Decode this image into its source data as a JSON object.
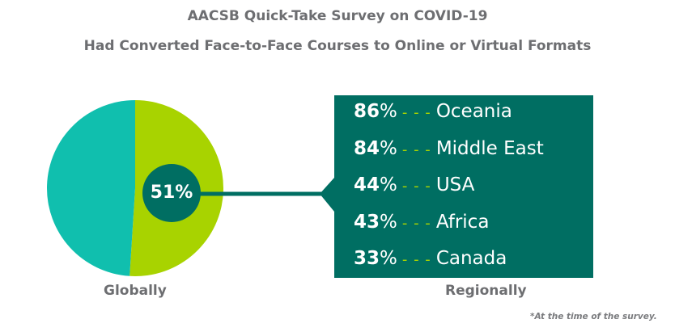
{
  "chart_data": {
    "type": "pie",
    "title": "AACSB Quick-Take Survey on COVID-19",
    "subtitle": "Had Converted Face-to-Face Courses to Online or Virtual Formats",
    "global": {
      "label": "Globally",
      "value": 51,
      "value_label": "51%"
    },
    "slices": [
      {
        "value": 51,
        "color": "#a8d300"
      },
      {
        "value": 49,
        "color": "#10bfae"
      }
    ],
    "regional_label": "Regionally",
    "regions": [
      {
        "value": 86,
        "value_label": "86",
        "region": "Oceania"
      },
      {
        "value": 84,
        "value_label": "84",
        "region": "Middle East"
      },
      {
        "value": 44,
        "value_label": "44",
        "region": "USA"
      },
      {
        "value": 43,
        "value_label": "43",
        "region": "Africa"
      },
      {
        "value": 33,
        "value_label": "33",
        "region": "Canada"
      }
    ],
    "footnote": "*At the time of the survey.",
    "colors": {
      "box": "#006e62",
      "accent": "#a8d300",
      "teal": "#10bfae",
      "text": "#6d6e71"
    }
  }
}
